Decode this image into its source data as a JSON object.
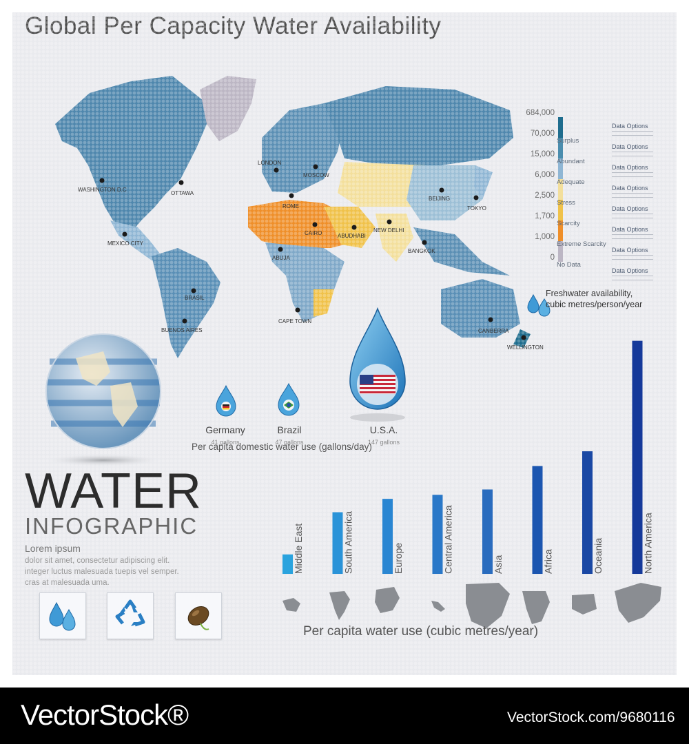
{
  "header": {
    "title": "Global Per Capacity Water Availability"
  },
  "map": {
    "cities": [
      {
        "name": "WASHINGTON D.C"
      },
      {
        "name": "OTTAWA"
      },
      {
        "name": "MEXICO CITY"
      },
      {
        "name": "BRASIL"
      },
      {
        "name": "BUENOS AIRES"
      },
      {
        "name": "LONDON"
      },
      {
        "name": "MOSCOW"
      },
      {
        "name": "ROME"
      },
      {
        "name": "CAIRO"
      },
      {
        "name": "ABUDHABI"
      },
      {
        "name": "ABUJA"
      },
      {
        "name": "NEW DELHI"
      },
      {
        "name": "BEIJING"
      },
      {
        "name": "TOKYO"
      },
      {
        "name": "BANGKOK"
      },
      {
        "name": "CAPE TOWN"
      },
      {
        "name": "CANBERRA"
      },
      {
        "name": "WELLINGTON"
      }
    ]
  },
  "legend": {
    "scale_values": [
      "684,000",
      "70,000",
      "15,000",
      "6,000",
      "2,500",
      "1,700",
      "1,000",
      "0"
    ],
    "categories": [
      {
        "name": "Surplus",
        "color": "#1f6d8e"
      },
      {
        "name": "Abundant",
        "color": "#4b8dae"
      },
      {
        "name": "Adequate",
        "color": "#8fb6d4"
      },
      {
        "name": "Stress",
        "color": "#f3df9c"
      },
      {
        "name": "Scarcity",
        "color": "#f0c24a"
      },
      {
        "name": "Extreme Scarcity",
        "color": "#ef8f2a"
      },
      {
        "name": "No Data",
        "color": "#bcb6c4"
      }
    ],
    "data_options": [
      "Data Options",
      "Data Options",
      "Data Options",
      "Data Options",
      "Data Options",
      "Data Options",
      "Data Options",
      "Data Options"
    ],
    "unit_line1": "Freshwater availability,",
    "unit_line2": "cubic metres/person/year"
  },
  "domestic_use": {
    "items": [
      {
        "country": "Germany",
        "value": "41 gallons"
      },
      {
        "country": "Brazil",
        "value": "47 gallons"
      },
      {
        "country": "U.S.A.",
        "value": "147 gallons"
      }
    ],
    "caption": "Per capita domestic water use (gallons/day)"
  },
  "hero": {
    "word1": "WATER",
    "word2": "INFOGRAPHIC",
    "lorem_head": "Lorem ipsum",
    "lorem_body_1": "dolor sit amet, consectetur adipiscing elit.",
    "lorem_body_2": "integer luctus malesuada tuepis vel semper.",
    "lorem_body_3": "cras at malesuada uma."
  },
  "icons": [
    "water-drops-icon",
    "recycle-icon",
    "seed-icon"
  ],
  "chart_data": {
    "type": "bar",
    "title": "",
    "xlabel": "Per capita water use (cubic metres/year)",
    "ylabel": "",
    "categories": [
      "Middle East",
      "South America",
      "Europe",
      "Central America",
      "Asia",
      "Africa",
      "Oceania",
      "North America"
    ],
    "values": [
      29,
      92,
      112,
      118,
      126,
      161,
      183,
      348
    ],
    "colors": [
      "#2aa3de",
      "#2a93d8",
      "#2a86d2",
      "#2a78c8",
      "#2a6cbe",
      "#1c56b0",
      "#1a48a4",
      "#15399a"
    ],
    "ylim": [
      0,
      360
    ],
    "grid": false,
    "legend": "none"
  },
  "footer": {
    "brand": "VectorStock®",
    "url": "VectorStock.com/9680116"
  }
}
